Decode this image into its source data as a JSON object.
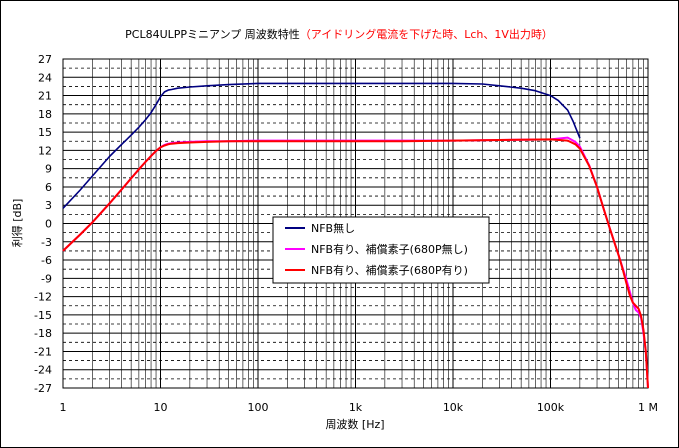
{
  "chart_data": {
    "type": "line",
    "title_black": "PCL84ULPPミニアンプ 周波数特性",
    "title_red": "（アイドリング電流を下げた時、Lch、1V出力時）",
    "xlabel": "周波数 [Hz]",
    "ylabel": "利得 [dB]",
    "x_scale": "log",
    "xlim": [
      1,
      1000000
    ],
    "ylim": [
      -27,
      27
    ],
    "x_tick_labels": [
      "1",
      "10",
      "100",
      "1k",
      "10k",
      "100k",
      "1 M"
    ],
    "x_tick_values": [
      1,
      10,
      100,
      1000,
      10000,
      100000,
      1000000
    ],
    "y_ticks": [
      27,
      24,
      21,
      18,
      15,
      12,
      9,
      6,
      3,
      0,
      -3,
      -6,
      -9,
      -12,
      -15,
      -18,
      -21,
      -24,
      -27
    ],
    "grid": true,
    "legend_position": "center",
    "series": [
      {
        "name": "NFB無し",
        "color": "#000080",
        "x": [
          1,
          1.5,
          2,
          3,
          4,
          5,
          6,
          7,
          8,
          9,
          10,
          11,
          12,
          13,
          15,
          20,
          30,
          50,
          100,
          300,
          1000,
          3000,
          10000,
          20000,
          30000,
          50000,
          70000,
          100000,
          120000,
          150000,
          170000,
          200000
        ],
        "y": [
          2.5,
          5.5,
          7.8,
          11.0,
          13.0,
          14.5,
          15.8,
          17.0,
          18.2,
          19.5,
          20.8,
          21.6,
          21.9,
          22.0,
          22.2,
          22.4,
          22.6,
          22.8,
          23.0,
          23.0,
          23.0,
          23.0,
          23.0,
          22.9,
          22.6,
          22.2,
          21.8,
          21.0,
          20.2,
          18.6,
          16.8,
          14.0
        ]
      },
      {
        "name": "NFB有り、補償素子(680P無し)",
        "color": "#ff00ff",
        "x": [
          1,
          1.5,
          2,
          3,
          4,
          5,
          6,
          7,
          8,
          9,
          10,
          11,
          12,
          13,
          15,
          20,
          30,
          50,
          100,
          300,
          1000,
          3000,
          10000,
          30000,
          100000,
          150000,
          180000,
          200000,
          250000,
          300000,
          350000,
          400000,
          450000,
          500000,
          550000,
          600000,
          650000,
          700000,
          750000,
          800000,
          850000,
          900000,
          950000,
          1000000
        ],
        "y": [
          -4.5,
          -1.8,
          0.2,
          3.3,
          5.6,
          7.4,
          8.9,
          10.1,
          11.1,
          11.9,
          12.5,
          12.9,
          13.1,
          13.2,
          13.3,
          13.4,
          13.5,
          13.5,
          13.6,
          13.6,
          13.6,
          13.6,
          13.6,
          13.7,
          13.8,
          14.1,
          13.4,
          12.6,
          9.5,
          6.0,
          2.5,
          -0.5,
          -3.0,
          -5.2,
          -7.3,
          -9.2,
          -11.2,
          -13.0,
          -14.2,
          -14.6,
          -15.5,
          -18.0,
          -21.0,
          -27.0
        ]
      },
      {
        "name": "NFB有り、補償素子(680P有り)",
        "color": "#ff0000",
        "x": [
          1,
          1.5,
          2,
          3,
          4,
          5,
          6,
          7,
          8,
          9,
          10,
          11,
          12,
          13,
          15,
          20,
          30,
          50,
          100,
          300,
          1000,
          3000,
          10000,
          30000,
          100000,
          150000,
          180000,
          200000,
          250000,
          300000,
          350000,
          400000,
          450000,
          500000,
          550000,
          600000,
          650000,
          700000,
          750000,
          800000,
          850000,
          900000,
          950000,
          1000000
        ],
        "y": [
          -4.5,
          -1.8,
          0.2,
          3.3,
          5.6,
          7.4,
          8.9,
          10.1,
          11.1,
          11.9,
          12.5,
          12.8,
          13.0,
          13.1,
          13.2,
          13.3,
          13.4,
          13.5,
          13.5,
          13.5,
          13.5,
          13.5,
          13.6,
          13.7,
          13.8,
          13.6,
          13.0,
          12.3,
          9.4,
          6.0,
          2.5,
          -0.5,
          -3.0,
          -5.2,
          -7.5,
          -9.8,
          -11.8,
          -13.0,
          -13.5,
          -14.0,
          -15.2,
          -17.5,
          -21.0,
          -27.0
        ]
      }
    ]
  }
}
